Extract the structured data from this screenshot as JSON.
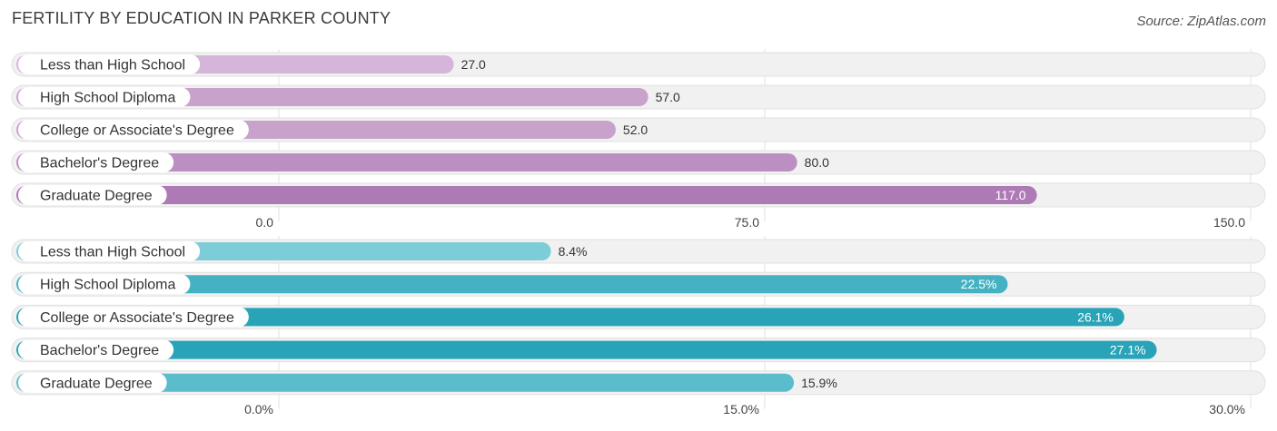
{
  "header": {
    "title": "FERTILITY BY EDUCATION IN PARKER COUNTY",
    "source": "Source: ZipAtlas.com"
  },
  "chart_data": [
    {
      "type": "bar",
      "orientation": "horizontal",
      "categories": [
        "Less than High School",
        "High School Diploma",
        "College or Associate's Degree",
        "Bachelor's Degree",
        "Graduate Degree"
      ],
      "values": [
        27.0,
        57.0,
        52.0,
        80.0,
        117.0
      ],
      "value_labels": [
        "27.0",
        "57.0",
        "52.0",
        "80.0",
        "117.0"
      ],
      "xlim": [
        0,
        150
      ],
      "ticks": [
        0,
        75,
        150
      ],
      "tick_labels": [
        "0.0",
        "75.0",
        "150.0"
      ],
      "colors": [
        "#d5b5da",
        "#c9a2cc",
        "#c9a2cc",
        "#bc8fc2",
        "#ae7ab6"
      ],
      "grid": true
    },
    {
      "type": "bar",
      "orientation": "horizontal",
      "categories": [
        "Less than High School",
        "High School Diploma",
        "College or Associate's Degree",
        "Bachelor's Degree",
        "Graduate Degree"
      ],
      "values": [
        8.4,
        22.5,
        26.1,
        27.1,
        15.9
      ],
      "value_labels": [
        "8.4%",
        "22.5%",
        "26.1%",
        "27.1%",
        "15.9%"
      ],
      "xlim": [
        0,
        30
      ],
      "ticks": [
        0,
        15,
        30
      ],
      "tick_labels": [
        "0.0%",
        "15.0%",
        "30.0%"
      ],
      "colors": [
        "#7ccdd8",
        "#45b2c4",
        "#28a3b8",
        "#28a3b8",
        "#5bbccb"
      ],
      "grid": true
    }
  ]
}
